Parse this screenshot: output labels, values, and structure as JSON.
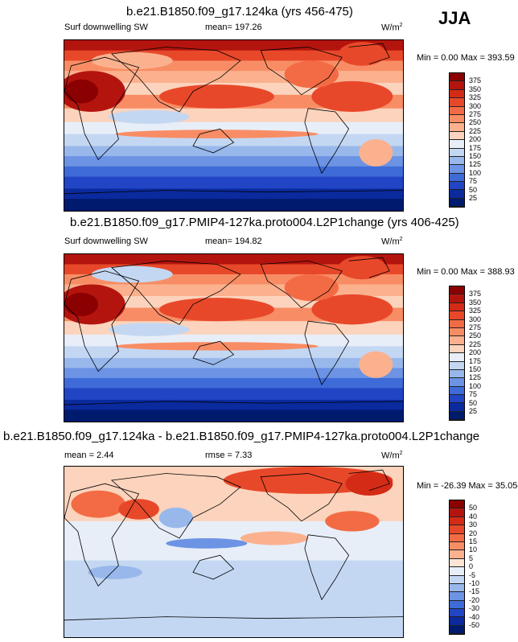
{
  "season": "JJA",
  "units": "W/m",
  "units_sup": "2",
  "panels": [
    {
      "title": "b.e21.B1850.f09_g17.124ka (yrs 456-475)",
      "left_label": "Surf downwelling SW",
      "center_label": "mean= 197.26",
      "minmax": "Min =   0.00 Max = 393.59",
      "levels": [
        "375",
        "350",
        "325",
        "300",
        "275",
        "250",
        "225",
        "200",
        "175",
        "150",
        "125",
        "100",
        "75",
        "50",
        "25"
      ],
      "colors": [
        "#8b0000",
        "#b3150e",
        "#d42b17",
        "#e8482a",
        "#f36b44",
        "#f88d65",
        "#fbb18e",
        "#fcd3bc",
        "#e7eef8",
        "#c4d7f2",
        "#98b8ec",
        "#6c93e4",
        "#3f6bd8",
        "#2145c4",
        "#0a2a9e",
        "#001a6e"
      ]
    },
    {
      "title": "b.e21.B1850.f09_g17.PMIP4-127ka.proto004.L2P1change (yrs 406-425)",
      "left_label": "Surf downwelling SW",
      "center_label": "mean= 194.82",
      "minmax": "Min =   0.00 Max = 388.93",
      "levels": [
        "375",
        "350",
        "325",
        "300",
        "275",
        "250",
        "225",
        "200",
        "175",
        "150",
        "125",
        "100",
        "75",
        "50",
        "25"
      ],
      "colors": [
        "#8b0000",
        "#b3150e",
        "#d42b17",
        "#e8482a",
        "#f36b44",
        "#f88d65",
        "#fbb18e",
        "#fcd3bc",
        "#e7eef8",
        "#c4d7f2",
        "#98b8ec",
        "#6c93e4",
        "#3f6bd8",
        "#2145c4",
        "#0a2a9e",
        "#001a6e"
      ]
    },
    {
      "title": "b.e21.B1850.f09_g17.124ka - b.e21.B1850.f09_g17.PMIP4-127ka.proto004.L2P1change",
      "left_label": "mean =   2.44",
      "center_label": "rmse =   7.33",
      "minmax": "Min = -26.39 Max =  35.05",
      "levels": [
        "50",
        "40",
        "30",
        "20",
        "15",
        "10",
        "5",
        "0",
        "-5",
        "-10",
        "-15",
        "-20",
        "-30",
        "-40",
        "-50"
      ],
      "colors": [
        "#8b0000",
        "#b3150e",
        "#d42b17",
        "#e8482a",
        "#f36b44",
        "#f88d65",
        "#fbb18e",
        "#fde5d6",
        "#e7eef8",
        "#c4d7f2",
        "#98b8ec",
        "#6c93e4",
        "#3f6bd8",
        "#2145c4",
        "#0a2a9e",
        "#001a6e"
      ]
    }
  ],
  "chart_data": {
    "type": "heatmap",
    "season": "JJA",
    "variable": "Surf downwelling SW",
    "units": "W/m2",
    "maps": [
      {
        "title": "b.e21.B1850.f09_g17.124ka (yrs 456-475)",
        "mean": 197.26,
        "min": 0.0,
        "max": 393.59,
        "contour_levels": [
          25,
          50,
          75,
          100,
          125,
          150,
          175,
          200,
          225,
          250,
          275,
          300,
          325,
          350,
          375
        ]
      },
      {
        "title": "b.e21.B1850.f09_g17.PMIP4-127ka.proto004.L2P1change (yrs 406-425)",
        "mean": 194.82,
        "min": 0.0,
        "max": 388.93,
        "contour_levels": [
          25,
          50,
          75,
          100,
          125,
          150,
          175,
          200,
          225,
          250,
          275,
          300,
          325,
          350,
          375
        ]
      },
      {
        "title": "b.e21.B1850.f09_g17.124ka - b.e21.B1850.f09_g17.PMIP4-127ka.proto004.L2P1change",
        "mean": 2.44,
        "rmse": 7.33,
        "min": -26.39,
        "max": 35.05,
        "contour_levels": [
          -50,
          -40,
          -30,
          -20,
          -15,
          -10,
          -5,
          0,
          5,
          10,
          15,
          20,
          30,
          40,
          50
        ]
      }
    ]
  }
}
